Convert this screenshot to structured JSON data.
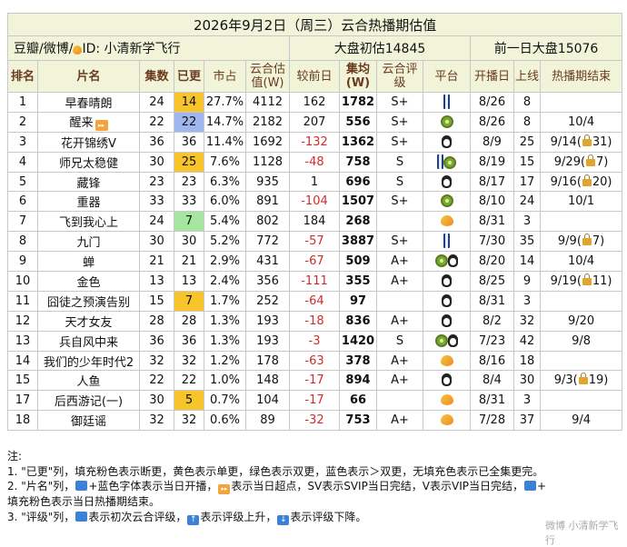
{
  "header": {
    "title": "2026年9月2日（周三）云合热播期估值",
    "source": "豆瓣/微博/",
    "author_id": "ID: 小清新学飞行",
    "market_today": "大盘初估14845",
    "market_prev": "前一日大盘15076"
  },
  "columns": [
    "排名",
    "片名",
    "集数",
    "已更",
    "市占",
    "云合估值(W)",
    "较前日",
    "集均(W)",
    "云合评级",
    "平台",
    "开播日",
    "上线",
    "热播期结束"
  ],
  "rows": [
    {
      "rank": "1",
      "name": "早春晴朗",
      "eps": "24",
      "aired": "14",
      "aired_color": "yellow",
      "share": "27.7%",
      "value": "4112",
      "diff": "162",
      "avg": "1782",
      "grade": "S+",
      "platforms": [
        "iqiyi"
      ],
      "start": "8/26",
      "days": "8",
      "end": ""
    },
    {
      "rank": "2",
      "name": "醒来",
      "name_badge": "ultra",
      "eps": "22",
      "aired": "22",
      "aired_color": "blue",
      "share": "14.7%",
      "value": "2182",
      "diff": "207",
      "avg": "556",
      "grade": "S+",
      "platforms": [
        "kiwi"
      ],
      "start": "8/26",
      "days": "8",
      "end": "10/4"
    },
    {
      "rank": "3",
      "name": "花开锦绣V",
      "eps": "36",
      "aired": "36",
      "aired_color": "",
      "share": "11.4%",
      "value": "1692",
      "diff": "-132",
      "avg": "1362",
      "grade": "S+",
      "platforms": [
        "qq"
      ],
      "start": "8/9",
      "days": "25",
      "end": "9/14(🔒31)"
    },
    {
      "rank": "4",
      "name": "师兄太稳健",
      "eps": "30",
      "aired": "25",
      "aired_color": "yellow",
      "share": "7.6%",
      "value": "1128",
      "diff": "-48",
      "avg": "758",
      "grade": "S",
      "platforms": [
        "iqiyi",
        "kiwi"
      ],
      "start": "8/19",
      "days": "15",
      "end": "9/29(🔒7)"
    },
    {
      "rank": "5",
      "name": "藏锋",
      "eps": "23",
      "aired": "23",
      "aired_color": "",
      "share": "6.3%",
      "value": "935",
      "diff": "1",
      "avg": "696",
      "grade": "S",
      "platforms": [
        "qq"
      ],
      "start": "8/17",
      "days": "17",
      "end": "9/16(🔒20)"
    },
    {
      "rank": "6",
      "name": "重器",
      "eps": "33",
      "aired": "33",
      "aired_color": "",
      "share": "6.0%",
      "value": "891",
      "diff": "-104",
      "avg": "1507",
      "grade": "S+",
      "platforms": [
        "kiwi"
      ],
      "start": "8/10",
      "days": "24",
      "end": "10/1"
    },
    {
      "rank": "7",
      "name": "飞到我心上",
      "eps": "24",
      "aired": "7",
      "aired_color": "green",
      "share": "5.4%",
      "value": "802",
      "diff": "184",
      "avg": "268",
      "grade": "",
      "platforms": [
        "mango"
      ],
      "start": "8/31",
      "days": "3",
      "end": ""
    },
    {
      "rank": "8",
      "name": "九门",
      "eps": "30",
      "aired": "30",
      "aired_color": "",
      "share": "5.2%",
      "value": "772",
      "diff": "-57",
      "avg": "3887",
      "grade": "S+",
      "platforms": [
        "iqiyi"
      ],
      "start": "7/30",
      "days": "35",
      "end": "9/9(🔒7)"
    },
    {
      "rank": "9",
      "name": "蝉",
      "eps": "21",
      "aired": "21",
      "aired_color": "",
      "share": "2.9%",
      "value": "431",
      "diff": "-67",
      "avg": "509",
      "grade": "A+",
      "platforms": [
        "kiwi",
        "qq"
      ],
      "start": "8/20",
      "days": "14",
      "end": "10/4"
    },
    {
      "rank": "10",
      "name": "金色",
      "eps": "13",
      "aired": "13",
      "aired_color": "",
      "share": "2.4%",
      "value": "356",
      "diff": "-111",
      "avg": "355",
      "grade": "A+",
      "platforms": [
        "qq"
      ],
      "start": "8/25",
      "days": "9",
      "end": "9/19(🔒11)"
    },
    {
      "rank": "11",
      "name": "囧徒之预演告别",
      "eps": "15",
      "aired": "7",
      "aired_color": "yellow",
      "share": "1.7%",
      "value": "252",
      "diff": "-64",
      "avg": "97",
      "grade": "",
      "platforms": [
        "qq"
      ],
      "start": "8/31",
      "days": "3",
      "end": ""
    },
    {
      "rank": "12",
      "name": "天才女友",
      "eps": "28",
      "aired": "28",
      "aired_color": "",
      "share": "1.3%",
      "value": "193",
      "diff": "-18",
      "avg": "836",
      "grade": "A+",
      "platforms": [
        "qq"
      ],
      "start": "8/2",
      "days": "32",
      "end": "9/20"
    },
    {
      "rank": "13",
      "name": "兵自风中来",
      "eps": "36",
      "aired": "36",
      "aired_color": "",
      "share": "1.3%",
      "value": "193",
      "diff": "-3",
      "avg": "1420",
      "grade": "S",
      "platforms": [
        "kiwi",
        "qq"
      ],
      "start": "7/23",
      "days": "42",
      "end": "9/8"
    },
    {
      "rank": "14",
      "name": "我们的少年时代2",
      "eps": "32",
      "aired": "32",
      "aired_color": "",
      "share": "1.2%",
      "value": "178",
      "diff": "-63",
      "avg": "378",
      "grade": "A+",
      "platforms": [
        "mango"
      ],
      "start": "8/16",
      "days": "18",
      "end": ""
    },
    {
      "rank": "15",
      "name": "人鱼",
      "eps": "22",
      "aired": "22",
      "aired_color": "",
      "share": "1.0%",
      "value": "148",
      "diff": "-17",
      "avg": "894",
      "grade": "A+",
      "platforms": [
        "qq"
      ],
      "start": "8/4",
      "days": "30",
      "end": "9/3(🔒19)"
    },
    {
      "rank": "17",
      "name": "后西游记(一)",
      "eps": "30",
      "aired": "5",
      "aired_color": "yellow",
      "share": "0.7%",
      "value": "104",
      "diff": "-17",
      "avg": "66",
      "grade": "",
      "platforms": [
        "mango"
      ],
      "start": "8/31",
      "days": "3",
      "end": ""
    },
    {
      "rank": "18",
      "name": "御廷谣",
      "eps": "32",
      "aired": "32",
      "aired_color": "",
      "share": "0.6%",
      "value": "89",
      "diff": "-32",
      "avg": "753",
      "grade": "A+",
      "platforms": [
        "mango"
      ],
      "start": "7/28",
      "days": "37",
      "end": "9/4"
    }
  ],
  "notes": {
    "title": "注:",
    "n1": "1. \"已更\"列，填充粉色表示断更，黄色表示单更，绿色表示双更，蓝色表示＞双更，无填充色表示已全集更完。",
    "n2a": "2. \"片名\"列，",
    "n2b": "+蓝色字体表示当日开播，",
    "n2c": "表示当日超点，SV表示SVIP当日完结，V表示VIP当日完结，",
    "n2d": "+",
    "n2e": "填充粉色表示当日热播期结束。",
    "n3a": "3. \"评级\"列，",
    "n3b": "表示初次云合评级，",
    "n3c": "表示评级上升，",
    "n3d": "表示评级下降。"
  },
  "watermark": "微博 小清新学飞行",
  "colors": {
    "header_bg": "#f1f4d9",
    "yellow": "#f7c52b",
    "green": "#a7e6a0",
    "blue": "#9fb7ee",
    "negative": "#d12c2c"
  }
}
